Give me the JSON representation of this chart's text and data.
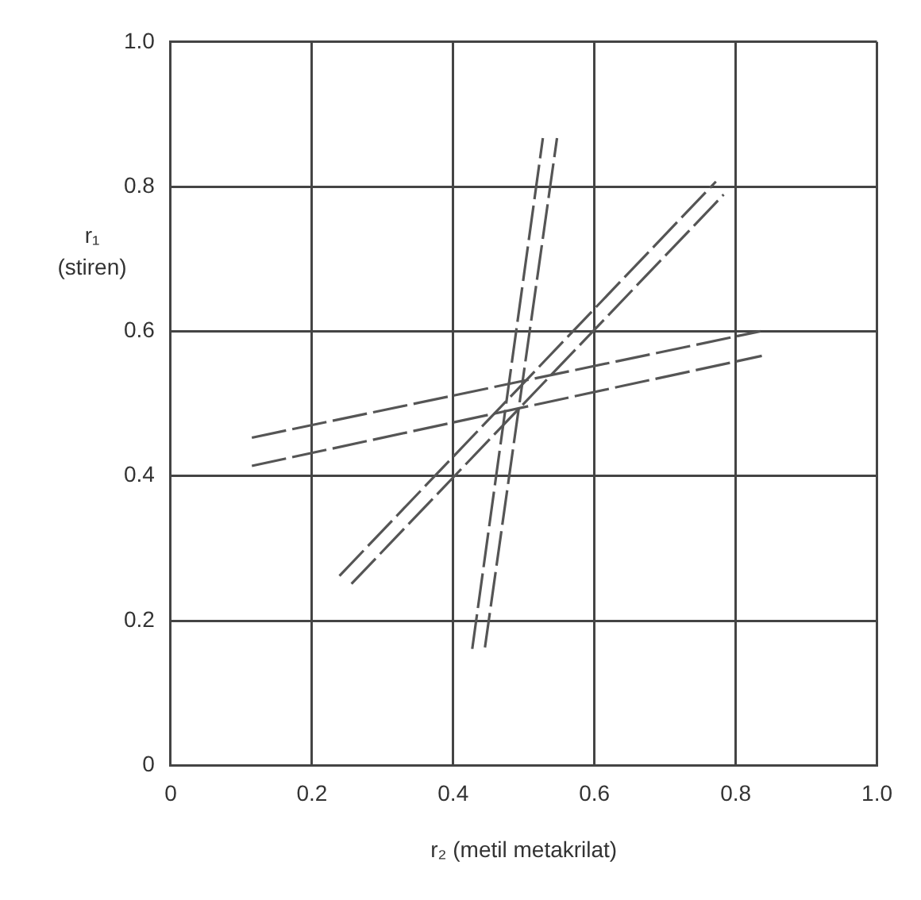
{
  "chart_data": {
    "type": "line",
    "xlabel": "r₂ (metil metakrilat)",
    "ylabel": "r₁ (stiren)",
    "xlim": [
      0,
      1
    ],
    "ylim": [
      0,
      1
    ],
    "xticks": [
      0,
      0.2,
      0.4,
      0.6,
      0.8,
      {
        "value": 1,
        "label": "1.0"
      }
    ],
    "yticks": [
      0,
      0.2,
      0.4,
      0.6,
      0.8,
      {
        "value": 1,
        "label": "1.0"
      }
    ],
    "grid": true,
    "legend": false,
    "marker": "none",
    "line_style": "dashed",
    "series": [
      {
        "color": "#555555",
        "x": [
          0.115,
          0.835
        ],
        "values": [
          0.453,
          0.6
        ]
      },
      {
        "color": "#555555",
        "x": [
          0.115,
          0.837
        ],
        "values": [
          0.414,
          0.566
        ]
      },
      {
        "color": "#555555",
        "x": [
          0.239,
          0.772
        ],
        "values": [
          0.262,
          0.807
        ]
      },
      {
        "color": "#555555",
        "x": [
          0.256,
          0.783
        ],
        "values": [
          0.251,
          0.789
        ]
      },
      {
        "color": "#555555",
        "x": [
          0.427,
          0.527
        ],
        "values": [
          0.161,
          0.867
        ]
      },
      {
        "color": "#555555",
        "x": [
          0.445,
          0.547
        ],
        "values": [
          0.163,
          0.867
        ]
      }
    ]
  }
}
